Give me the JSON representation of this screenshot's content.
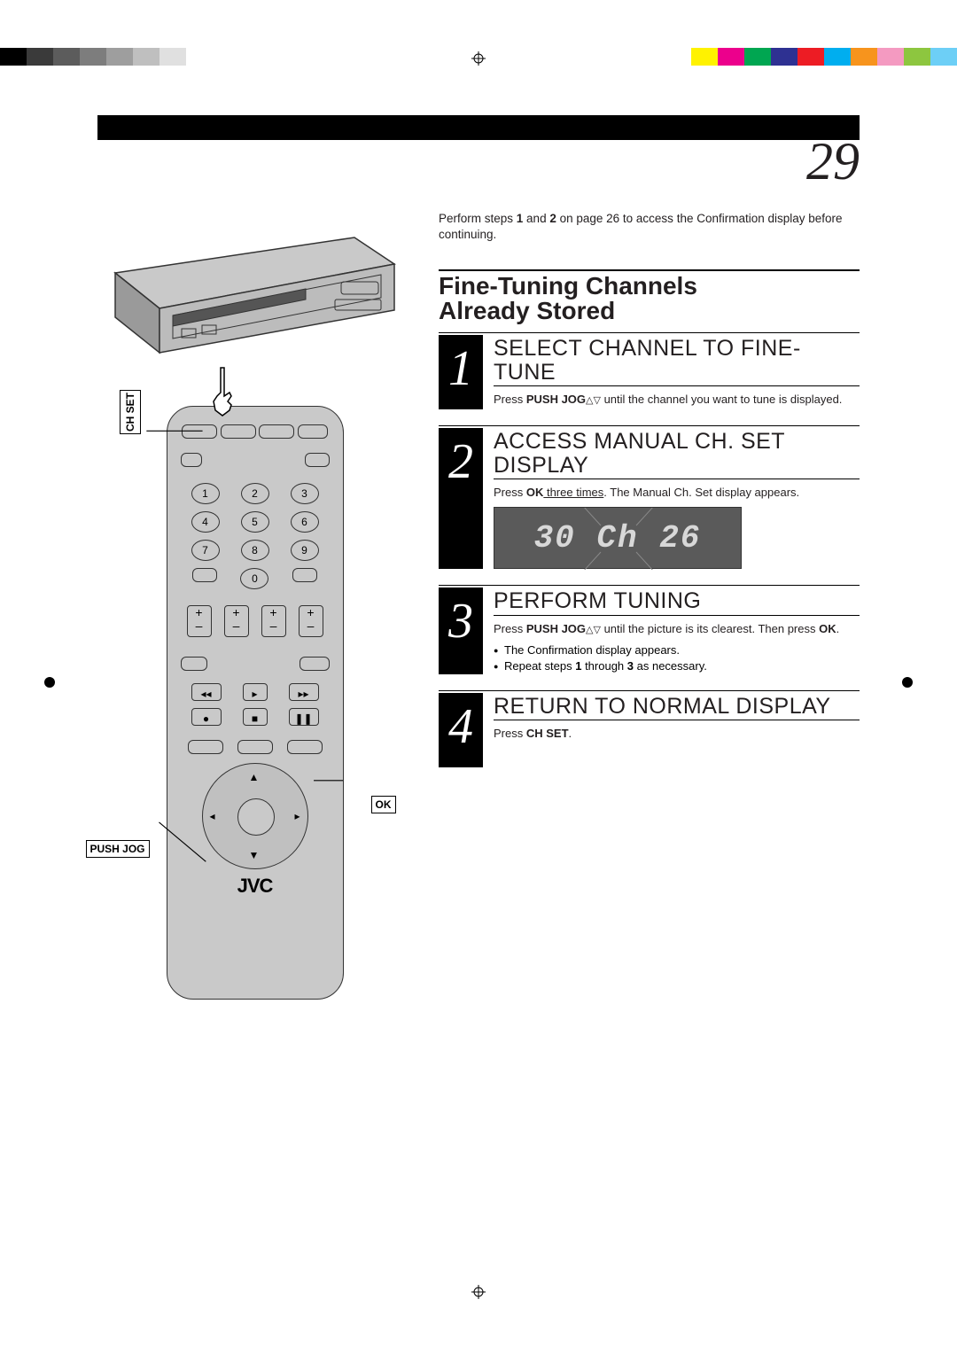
{
  "page_number": "29",
  "colors": {
    "left_bar": [
      "#000000",
      "#3a3a3a",
      "#5c5c5c",
      "#7d7d7d",
      "#9e9e9e",
      "#bfbfbf",
      "#e0e0e0"
    ],
    "right_bar": [
      "#fff200",
      "#ec008c",
      "#00a651",
      "#2e3192",
      "#ed1c24",
      "#00aeef",
      "#f7941d",
      "#f49ac1",
      "#8dc63f",
      "#6dcff6"
    ]
  },
  "intro": {
    "pre": "Perform steps ",
    "b1": "1",
    "mid": " and ",
    "b2": "2",
    "post": " on page 26 to access the Confirmation display before continuing."
  },
  "section_title_l1": "Fine-Tuning Channels",
  "section_title_l2": "Already Stored",
  "steps": [
    {
      "num": "1",
      "head": "SELECT CHANNEL TO FINE-TUNE",
      "desc_pre": "Press ",
      "desc_b": "PUSH JOG",
      "desc_post": " until the channel you want to tune is displayed.",
      "triangles": true
    },
    {
      "num": "2",
      "head": "ACCESS MANUAL CH. SET DISPLAY",
      "desc_pre": "Press ",
      "desc_b": "OK",
      "desc_u": " three times",
      "desc_post": ". The Manual Ch. Set display appears.",
      "display_text": "30 Ch 26"
    },
    {
      "num": "3",
      "head": "PERFORM TUNING",
      "desc_pre": "Press ",
      "desc_b": "PUSH JOG",
      "triangles": true,
      "desc_post": " until the picture is its clearest. Then press ",
      "desc_b2": "OK",
      "desc_post2": ".",
      "bullets": [
        "The Confirmation display appears.",
        {
          "pre": "Repeat steps ",
          "b1": "1",
          "mid": " through ",
          "b2": "3",
          "post": " as necessary."
        }
      ]
    },
    {
      "num": "4",
      "head": "RETURN TO NORMAL DISPLAY",
      "desc_pre": "Press ",
      "desc_b": "CH SET",
      "desc_post": "."
    }
  ],
  "remote": {
    "callouts": {
      "ch_set": "CH SET",
      "ok": "OK",
      "push_jog": "PUSH JOG"
    },
    "brand": "JVC",
    "num_buttons": [
      "1",
      "2",
      "3",
      "4",
      "5",
      "6",
      "7",
      "8",
      "9",
      "0"
    ]
  }
}
